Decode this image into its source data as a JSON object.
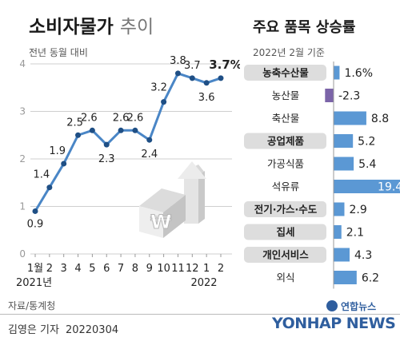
{
  "header": {
    "title": "소비자물가",
    "title_suffix": "추이",
    "unit_note": "전년 동월 대비"
  },
  "right_header": {
    "title": "주요 품목 상승률",
    "subtitle": "2022년 2월 기준"
  },
  "footer": {
    "source": "자료/통계청",
    "reporter": "김영은 기자",
    "date": "20220304",
    "logo_korean": "연합뉴스",
    "logo_english": "YONHAP NEWS"
  },
  "colors": {
    "line": "#4a86c6",
    "marker": "#1f4f85",
    "bar": "#5b98d4",
    "bar_negative": "#7b64a8",
    "highlight_bg": "#dddddd",
    "grid": "#cfcfcf"
  },
  "chart_data": [
    {
      "type": "line",
      "title": "소비자물가 추이",
      "ylabel": "전년 동월 대비",
      "categories": [
        "1월",
        "2",
        "3",
        "4",
        "5",
        "6",
        "7",
        "8",
        "9",
        "10",
        "11",
        "12",
        "1",
        "2"
      ],
      "year_labels": [
        "2021년",
        "2022"
      ],
      "values": [
        0.9,
        1.4,
        1.9,
        2.5,
        2.6,
        2.3,
        2.6,
        2.6,
        2.4,
        3.2,
        3.8,
        3.7,
        3.6,
        3.7
      ],
      "value_labels": [
        "0.9",
        "1.4",
        "1.9",
        "2.5",
        "2.6",
        "2.3",
        "2.6",
        "2.6",
        "2.4",
        "3.2",
        "3.8",
        "3.7",
        "3.6",
        "3.7%"
      ],
      "yticks": [
        0,
        1,
        2,
        3,
        4
      ],
      "ylim": [
        0,
        4
      ],
      "grid": true
    },
    {
      "type": "bar",
      "title": "주요 품목 상승률",
      "subtitle": "2022년 2월 기준",
      "categories": [
        "농축수산물",
        "농산물",
        "축산물",
        "공업제품",
        "가공식품",
        "석유류",
        "전기·가스·수도",
        "집세",
        "개인서비스",
        "외식"
      ],
      "values": [
        1.6,
        -2.3,
        8.8,
        5.2,
        5.4,
        19.4,
        2.9,
        2.1,
        4.3,
        6.2
      ],
      "value_labels": [
        "1.6%",
        "-2.3",
        "8.8",
        "5.2",
        "5.4",
        "19.4",
        "2.9",
        "2.1",
        "4.3",
        "6.2"
      ],
      "highlighted": [
        "농축수산물",
        "공업제품",
        "전기·가스·수도",
        "집세",
        "개인서비스"
      ]
    }
  ]
}
